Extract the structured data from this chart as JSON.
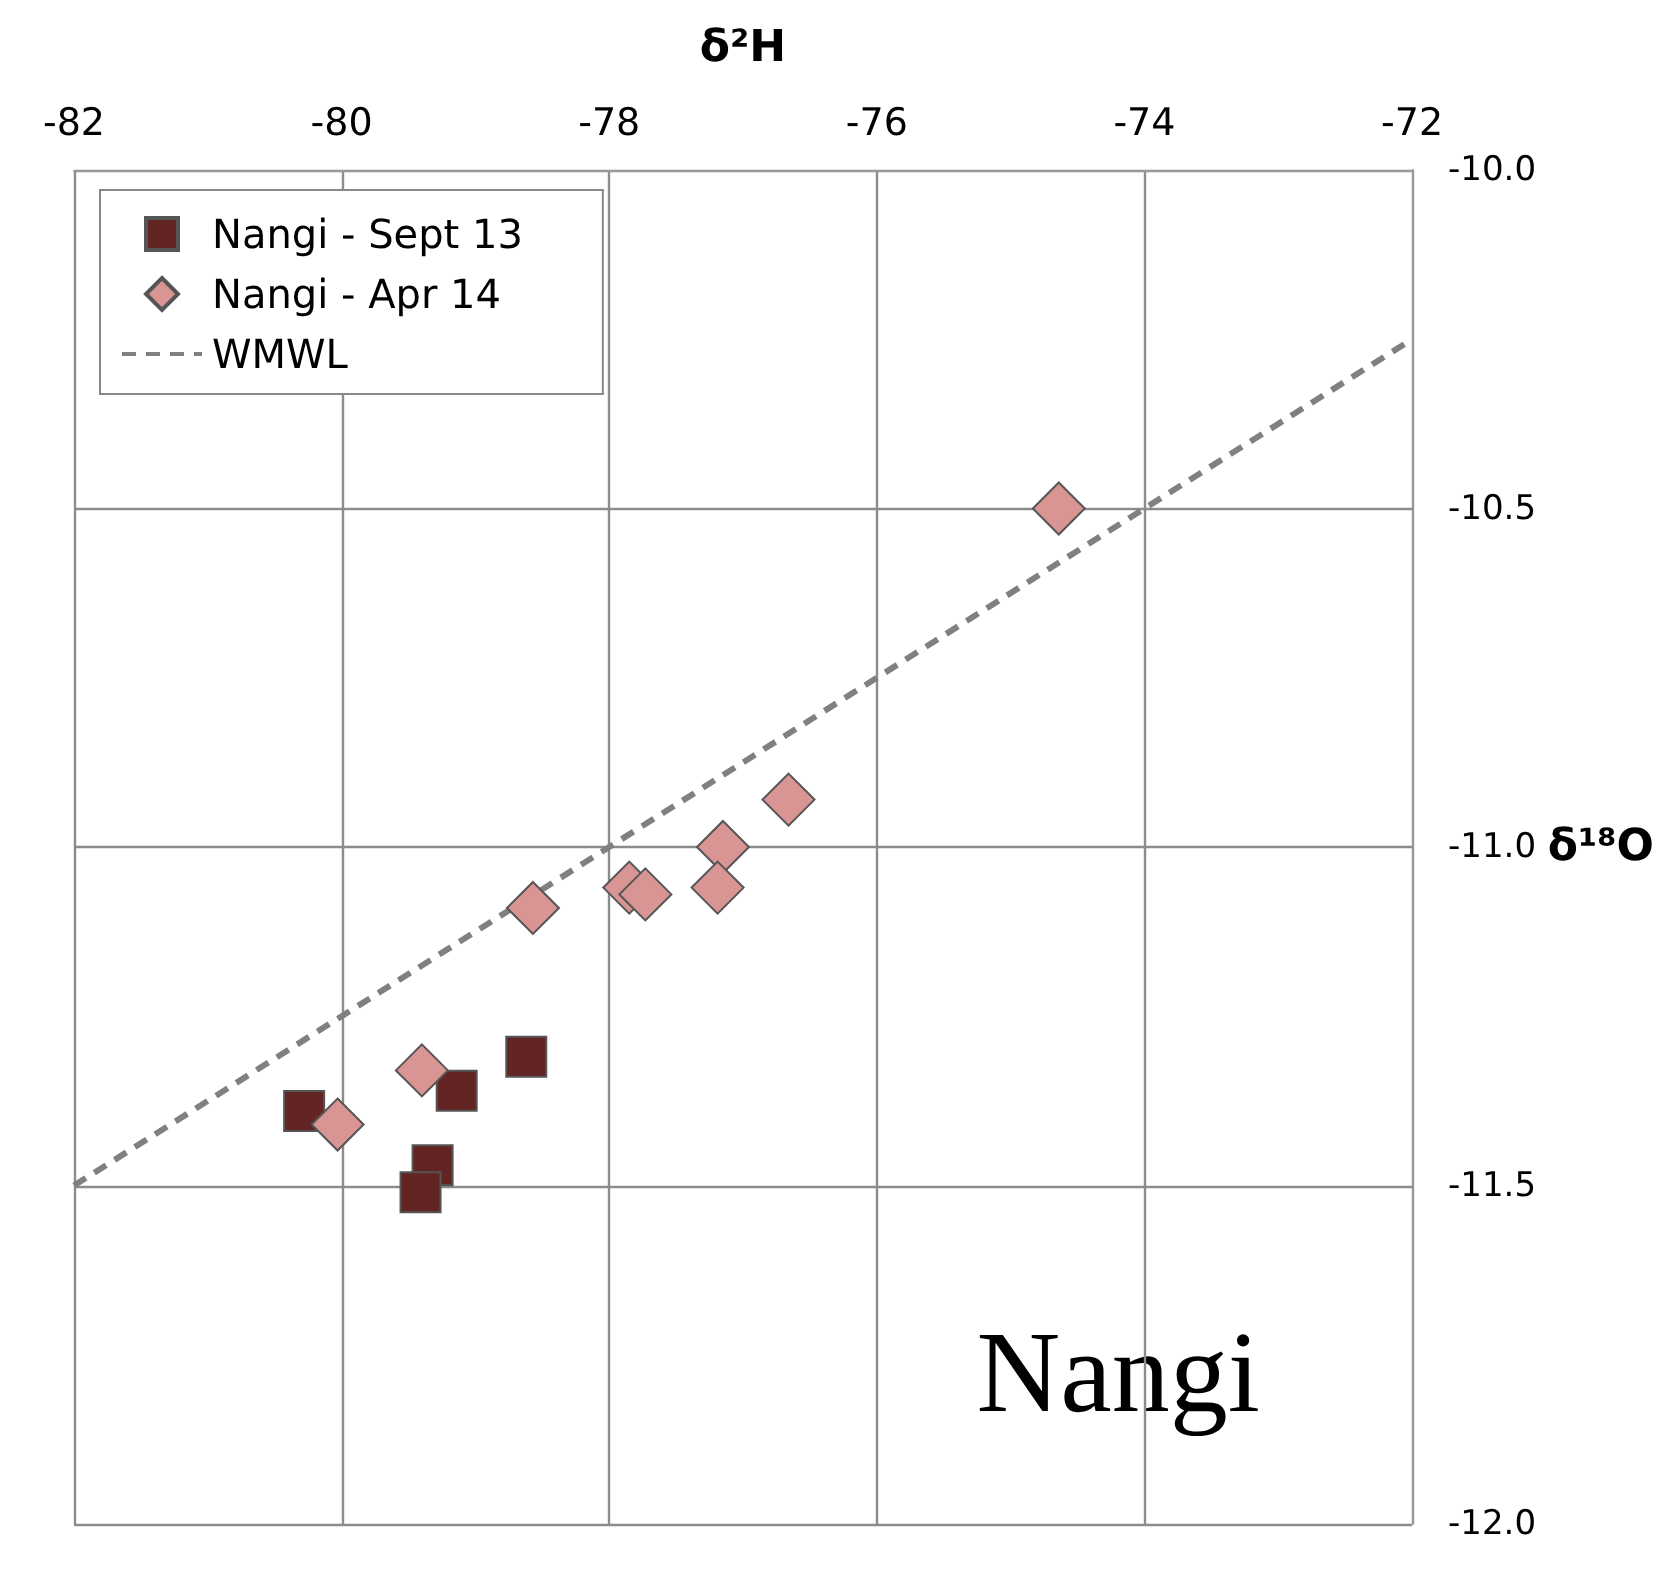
{
  "chart_data": {
    "type": "scatter",
    "xlabel": "δ²H",
    "ylabel": "δ¹⁸O",
    "xlim": [
      -82,
      -72
    ],
    "xticks": [
      -82,
      -80,
      -78,
      -76,
      -74,
      -72
    ],
    "ylim": [
      -12,
      -10
    ],
    "yticks": [
      {
        "value": -12,
        "label": "-12.0"
      },
      {
        "value": -11.5,
        "label": "-11.5"
      },
      {
        "value": -11,
        "label": "-11.0"
      },
      {
        "value": -10.5,
        "label": "-10.5"
      },
      {
        "value": -10,
        "label": "-10.0"
      }
    ],
    "grid": true,
    "legend": "top left",
    "annotations": [
      "Nangi"
    ],
    "series": [
      {
        "name": "Nangi - Sept 13",
        "marker": "square",
        "color": "#632523",
        "x": [
          -80.28,
          -79.14,
          -78.62,
          -79.32,
          -79.41
        ],
        "values": [
          -11.39,
          -11.36,
          -11.31,
          -11.47,
          -11.51
        ]
      },
      {
        "name": "Nangi - Apr 14",
        "marker": "diamond",
        "color": "#d99594",
        "x": [
          -80.03,
          -79.4,
          -78.57,
          -77.85,
          -77.73,
          -77.15,
          -77.19,
          -76.66,
          -74.64
        ],
        "values": [
          -11.41,
          -11.33,
          -11.09,
          -11.06,
          -11.07,
          -11.0,
          -11.06,
          -10.93,
          -10.5
        ]
      },
      {
        "name": "WMWL",
        "type": "line",
        "marker": "none",
        "line_style": "dashed",
        "color": "#808080",
        "x": [
          -82,
          -72
        ],
        "values": [
          -11.5,
          -10.25
        ]
      }
    ]
  }
}
